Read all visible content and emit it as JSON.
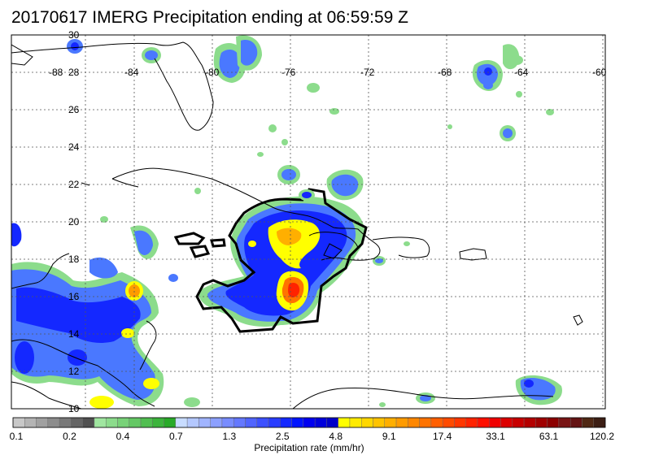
{
  "title": "20170617 IMERG Precipitation ending at 06:59:59 Z",
  "lon_labels": [
    "-88",
    "-84",
    "-80",
    "-76",
    "-72",
    "-68",
    "-64",
    "-60"
  ],
  "lat_labels": [
    "30",
    "28",
    "26",
    "24",
    "22",
    "20",
    "18",
    "16",
    "14",
    "12",
    "10"
  ],
  "colorbar": {
    "title": "Precipitation rate (mm/hr)",
    "tick_labels": [
      "0.1",
      "0.2",
      "0.4",
      "0.7",
      "1.3",
      "2.5",
      "4.8",
      "9.1",
      "17.4",
      "33.1",
      "63.1",
      "120.2"
    ],
    "colors": [
      "#c8c8c8",
      "#b4b4b4",
      "#a0a0a0",
      "#8c8c8c",
      "#787878",
      "#646464",
      "#505050",
      "#a0e6a0",
      "#8cdc8c",
      "#78d278",
      "#64c864",
      "#50be50",
      "#3cb43c",
      "#28aa28",
      "#c8dcff",
      "#b4c8ff",
      "#a0b4ff",
      "#8ca0ff",
      "#788cff",
      "#6478ff",
      "#5064ff",
      "#3c50ff",
      "#283cff",
      "#1428ff",
      "#0014ff",
      "#0000f0",
      "#0000dc",
      "#0000c8",
      "#ffff00",
      "#ffeb00",
      "#ffd700",
      "#ffc300",
      "#ffaf00",
      "#ff9b00",
      "#ff8700",
      "#ff7300",
      "#ff5f00",
      "#ff4b00",
      "#ff3700",
      "#ff2300",
      "#ff0f00",
      "#f00000",
      "#dc0000",
      "#c80000",
      "#b40000",
      "#a00000",
      "#8c0000",
      "#781414",
      "#641414",
      "#502814",
      "#3c1e14"
    ]
  }
}
